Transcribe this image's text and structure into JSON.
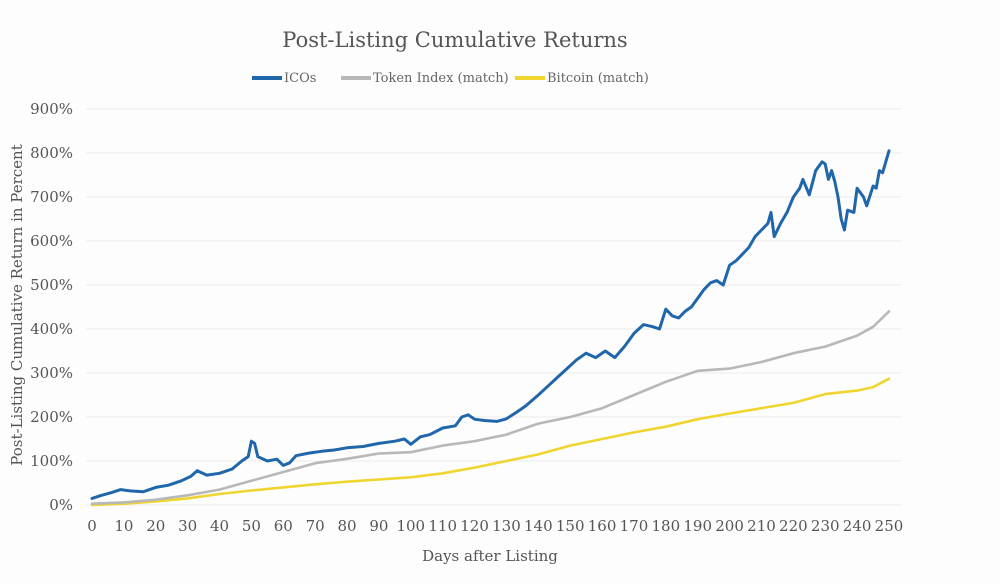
{
  "chart_data": {
    "type": "line",
    "title": "Post-Listing Cumulative Returns",
    "xlabel": "Days after Listing",
    "ylabel": "Post-Listing Cumulative Return in Percent",
    "xlim": [
      0,
      250
    ],
    "ylim": [
      0,
      900
    ],
    "x_ticks": [
      "0",
      "10",
      "20",
      "30",
      "40",
      "50",
      "60",
      "70",
      "80",
      "90",
      "100",
      "110",
      "120",
      "130",
      "140",
      "150",
      "160",
      "170",
      "180",
      "190",
      "200",
      "210",
      "220",
      "230",
      "240",
      "250"
    ],
    "y_ticks": [
      "0%",
      "100%",
      "200%",
      "300%",
      "400%",
      "500%",
      "600%",
      "700%",
      "800%",
      "900%"
    ],
    "grid": true,
    "legend_position": "top-center",
    "series": [
      {
        "name": "ICOs",
        "color": "#1f66ab",
        "points": [
          [
            0,
            15
          ],
          [
            3,
            22
          ],
          [
            6,
            28
          ],
          [
            9,
            35
          ],
          [
            12,
            32
          ],
          [
            16,
            30
          ],
          [
            20,
            40
          ],
          [
            24,
            45
          ],
          [
            28,
            55
          ],
          [
            31,
            65
          ],
          [
            33,
            78
          ],
          [
            36,
            68
          ],
          [
            40,
            72
          ],
          [
            44,
            82
          ],
          [
            47,
            100
          ],
          [
            49,
            110
          ],
          [
            50,
            145
          ],
          [
            51,
            140
          ],
          [
            52,
            110
          ],
          [
            55,
            100
          ],
          [
            58,
            104
          ],
          [
            60,
            90
          ],
          [
            62,
            96
          ],
          [
            64,
            112
          ],
          [
            68,
            118
          ],
          [
            72,
            122
          ],
          [
            76,
            125
          ],
          [
            80,
            130
          ],
          [
            85,
            133
          ],
          [
            90,
            140
          ],
          [
            95,
            145
          ],
          [
            98,
            150
          ],
          [
            100,
            138
          ],
          [
            103,
            155
          ],
          [
            106,
            160
          ],
          [
            110,
            175
          ],
          [
            114,
            180
          ],
          [
            116,
            200
          ],
          [
            118,
            205
          ],
          [
            120,
            195
          ],
          [
            123,
            192
          ],
          [
            127,
            190
          ],
          [
            130,
            196
          ],
          [
            133,
            210
          ],
          [
            136,
            225
          ],
          [
            140,
            250
          ],
          [
            143,
            270
          ],
          [
            146,
            290
          ],
          [
            149,
            310
          ],
          [
            152,
            330
          ],
          [
            155,
            345
          ],
          [
            158,
            335
          ],
          [
            161,
            350
          ],
          [
            164,
            335
          ],
          [
            167,
            360
          ],
          [
            170,
            390
          ],
          [
            173,
            410
          ],
          [
            176,
            405
          ],
          [
            178,
            400
          ],
          [
            180,
            445
          ],
          [
            182,
            430
          ],
          [
            184,
            425
          ],
          [
            186,
            440
          ],
          [
            188,
            450
          ],
          [
            190,
            470
          ],
          [
            192,
            490
          ],
          [
            194,
            505
          ],
          [
            196,
            510
          ],
          [
            198,
            500
          ],
          [
            200,
            545
          ],
          [
            202,
            555
          ],
          [
            204,
            570
          ],
          [
            206,
            585
          ],
          [
            208,
            610
          ],
          [
            210,
            625
          ],
          [
            212,
            640
          ],
          [
            213,
            665
          ],
          [
            214,
            610
          ],
          [
            216,
            640
          ],
          [
            218,
            665
          ],
          [
            220,
            700
          ],
          [
            222,
            720
          ],
          [
            223,
            740
          ],
          [
            225,
            705
          ],
          [
            227,
            760
          ],
          [
            229,
            780
          ],
          [
            230,
            775
          ],
          [
            231,
            740
          ],
          [
            232,
            760
          ],
          [
            233,
            735
          ],
          [
            234,
            700
          ],
          [
            235,
            650
          ],
          [
            236,
            625
          ],
          [
            237,
            670
          ],
          [
            239,
            665
          ],
          [
            240,
            720
          ],
          [
            242,
            700
          ],
          [
            243,
            680
          ],
          [
            245,
            725
          ],
          [
            246,
            720
          ],
          [
            247,
            760
          ],
          [
            248,
            755
          ],
          [
            249,
            780
          ],
          [
            250,
            805
          ]
        ]
      },
      {
        "name": "Token Index (match)",
        "color": "#b8b8b8",
        "points": [
          [
            0,
            3
          ],
          [
            10,
            6
          ],
          [
            20,
            12
          ],
          [
            30,
            22
          ],
          [
            40,
            35
          ],
          [
            50,
            55
          ],
          [
            60,
            75
          ],
          [
            70,
            95
          ],
          [
            80,
            105
          ],
          [
            90,
            117
          ],
          [
            100,
            120
          ],
          [
            110,
            135
          ],
          [
            120,
            145
          ],
          [
            130,
            160
          ],
          [
            140,
            185
          ],
          [
            150,
            200
          ],
          [
            160,
            220
          ],
          [
            170,
            250
          ],
          [
            180,
            280
          ],
          [
            190,
            305
          ],
          [
            200,
            310
          ],
          [
            210,
            325
          ],
          [
            220,
            345
          ],
          [
            230,
            360
          ],
          [
            240,
            385
          ],
          [
            245,
            405
          ],
          [
            250,
            440
          ]
        ]
      },
      {
        "name": "Bitcoin (match)",
        "color": "#f0d530",
        "points": [
          [
            0,
            0
          ],
          [
            10,
            3
          ],
          [
            20,
            8
          ],
          [
            30,
            15
          ],
          [
            40,
            25
          ],
          [
            50,
            33
          ],
          [
            60,
            40
          ],
          [
            70,
            47
          ],
          [
            80,
            53
          ],
          [
            90,
            58
          ],
          [
            100,
            63
          ],
          [
            110,
            72
          ],
          [
            120,
            85
          ],
          [
            130,
            100
          ],
          [
            140,
            115
          ],
          [
            150,
            135
          ],
          [
            160,
            150
          ],
          [
            170,
            165
          ],
          [
            180,
            178
          ],
          [
            190,
            195
          ],
          [
            200,
            208
          ],
          [
            210,
            220
          ],
          [
            220,
            232
          ],
          [
            230,
            252
          ],
          [
            240,
            260
          ],
          [
            245,
            268
          ],
          [
            250,
            287
          ]
        ]
      }
    ]
  }
}
